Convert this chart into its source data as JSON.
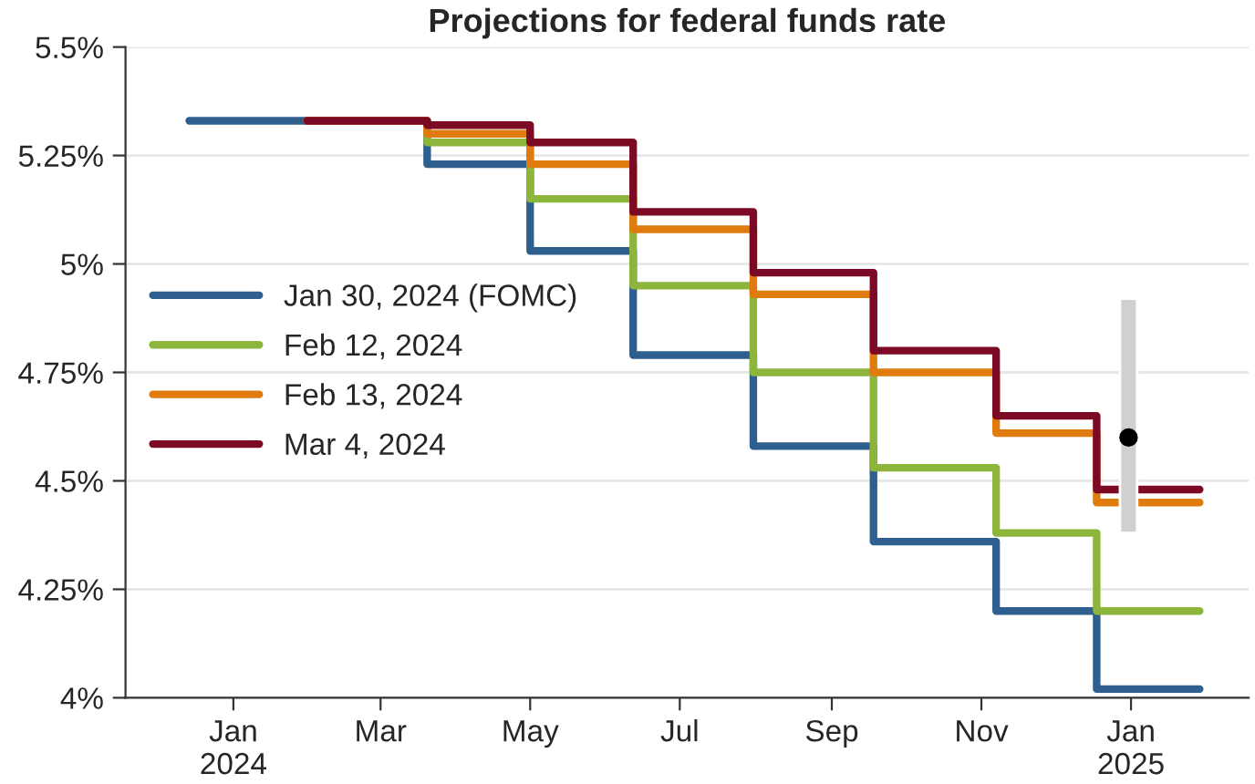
{
  "chart_data": {
    "type": "step",
    "title": "Projections for federal funds rate",
    "series": [
      {
        "name": "Jan 30, 2024 (FOMC)",
        "color": "#2e5f8e",
        "x": [
          "2023-12-14",
          "2024-03-20",
          "2024-05-01",
          "2024-06-12",
          "2024-07-31",
          "2024-09-18",
          "2024-11-07",
          "2024-12-18",
          "2025-01-29"
        ],
        "values": [
          5.33,
          5.23,
          5.03,
          4.79,
          4.58,
          4.36,
          4.2,
          4.02,
          4.02
        ]
      },
      {
        "name": "Feb 12, 2024",
        "color": "#8db53c",
        "x": [
          "2024-01-31",
          "2024-03-20",
          "2024-05-01",
          "2024-06-12",
          "2024-07-31",
          "2024-09-18",
          "2024-11-07",
          "2024-12-18",
          "2025-01-29"
        ],
        "values": [
          5.33,
          5.28,
          5.15,
          4.95,
          4.75,
          4.53,
          4.38,
          4.2,
          4.2
        ]
      },
      {
        "name": "Feb 13, 2024",
        "color": "#e07b10",
        "x": [
          "2024-01-31",
          "2024-03-20",
          "2024-05-01",
          "2024-06-12",
          "2024-07-31",
          "2024-09-18",
          "2024-11-07",
          "2024-12-18",
          "2025-01-29"
        ],
        "values": [
          5.33,
          5.3,
          5.23,
          5.08,
          4.93,
          4.75,
          4.61,
          4.45,
          4.45
        ]
      },
      {
        "name": "Mar 4, 2024",
        "color": "#7d0a24",
        "x": [
          "2024-01-31",
          "2024-03-20",
          "2024-05-01",
          "2024-06-12",
          "2024-07-31",
          "2024-09-18",
          "2024-11-07",
          "2024-12-18",
          "2025-01-29"
        ],
        "values": [
          5.33,
          5.32,
          5.28,
          5.12,
          4.98,
          4.8,
          4.65,
          4.48,
          4.48
        ]
      },
      {
        "type": "bar",
        "color": "#d0d0d0",
        "x": [
          "2024-12-31"
        ],
        "base": [
          4.38
        ],
        "values": [
          0.54
        ]
      },
      {
        "type": "scatter",
        "color": "#000000",
        "x": [
          "2024-12-31"
        ],
        "values": [
          4.6
        ]
      }
    ],
    "xlim": [
      "2023-11-18",
      "2025-02-18"
    ],
    "xticks": [
      {
        "value": "2024-01-01",
        "label": "Jan\n2024"
      },
      {
        "value": "2024-03-01",
        "label": "Mar"
      },
      {
        "value": "2024-05-01",
        "label": "May"
      },
      {
        "value": "2024-07-01",
        "label": "Jul"
      },
      {
        "value": "2024-09-01",
        "label": "Sep"
      },
      {
        "value": "2024-11-01",
        "label": "Nov"
      },
      {
        "value": "2025-01-01",
        "label": "Jan\n2025"
      }
    ],
    "ylim": [
      4,
      5.5
    ],
    "yticks": [
      {
        "value": 4,
        "label": "4%"
      },
      {
        "value": 4.25,
        "label": "4.25%"
      },
      {
        "value": 4.5,
        "label": "4.5%"
      },
      {
        "value": 4.75,
        "label": "4.75%"
      },
      {
        "value": 5,
        "label": "5%"
      },
      {
        "value": 5.25,
        "label": "5.25%"
      },
      {
        "value": 5.5,
        "label": "5.5%"
      }
    ],
    "grid": "y",
    "legend": "left"
  }
}
